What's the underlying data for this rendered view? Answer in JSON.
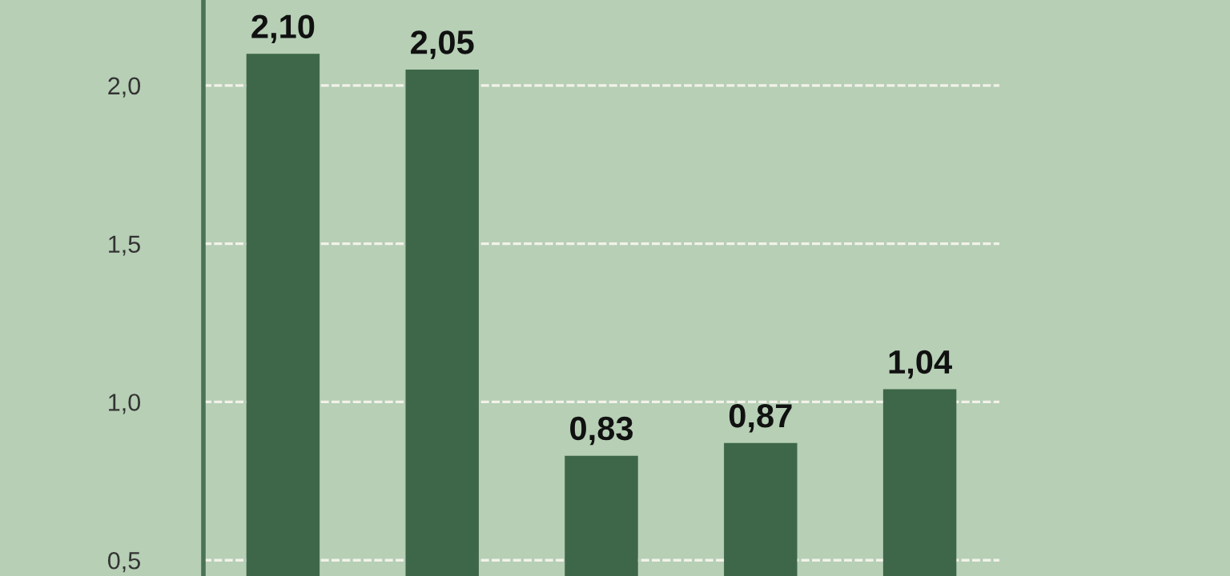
{
  "chart_data": {
    "type": "bar",
    "categories": [
      null,
      null,
      null,
      null,
      null
    ],
    "values": [
      2.1,
      2.05,
      0.83,
      0.87,
      1.04
    ],
    "value_labels": [
      "2,10",
      "2,05",
      "0,83",
      "0,87",
      "1,04"
    ],
    "color": "#3e6749",
    "ylim": [
      0.45,
      2.27
    ],
    "yticks": [
      {
        "value": 0.5,
        "label": "0,5"
      },
      {
        "value": 1.0,
        "label": "1,0"
      },
      {
        "value": 1.5,
        "label": "1,5"
      },
      {
        "value": 2.0,
        "label": "2,0"
      }
    ],
    "grid": "y",
    "legend": false,
    "tick_labels": "y"
  }
}
